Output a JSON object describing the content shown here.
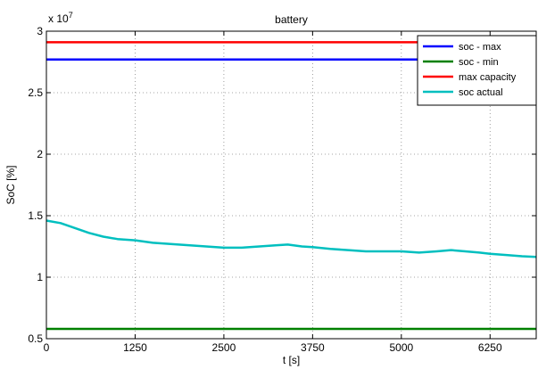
{
  "chart_data": {
    "type": "line",
    "title": "battery",
    "xlabel": "t [s]",
    "ylabel": "SoC [%]",
    "y_exponent_label": "x 10",
    "y_exponent": "7",
    "xlim": [
      0,
      6900
    ],
    "ylim": [
      0.5,
      3.0
    ],
    "grid": true,
    "legend_position": "top-right",
    "x_ticks": [
      0,
      1250,
      2500,
      3750,
      5000,
      6250
    ],
    "x_tick_labels": [
      "0",
      "1250",
      "2500",
      "3750",
      "5000",
      "6250"
    ],
    "y_ticks": [
      0.5,
      1.0,
      1.5,
      2.0,
      2.5,
      3.0
    ],
    "y_tick_labels": [
      "0.5",
      "1",
      "1.5",
      "2",
      "2.5",
      "3"
    ],
    "series": [
      {
        "name": "soc - max",
        "color": "#0000ff",
        "x": [
          0,
          6900
        ],
        "y": [
          2.77,
          2.77
        ]
      },
      {
        "name": "soc - min",
        "color": "#008000",
        "x": [
          0,
          6900
        ],
        "y": [
          0.58,
          0.58
        ]
      },
      {
        "name": "max capacity",
        "color": "#ff0000",
        "x": [
          0,
          6900
        ],
        "y": [
          2.91,
          2.91
        ]
      },
      {
        "name": "soc actual",
        "color": "#00bfbf",
        "x": [
          0,
          200,
          400,
          600,
          800,
          1000,
          1250,
          1500,
          1750,
          2000,
          2250,
          2500,
          2750,
          3000,
          3250,
          3400,
          3600,
          3750,
          4000,
          4250,
          4500,
          4750,
          5000,
          5250,
          5500,
          5700,
          5900,
          6100,
          6250,
          6500,
          6700,
          6900
        ],
        "y": [
          1.46,
          1.44,
          1.4,
          1.36,
          1.33,
          1.31,
          1.3,
          1.28,
          1.27,
          1.26,
          1.25,
          1.24,
          1.24,
          1.25,
          1.26,
          1.265,
          1.25,
          1.245,
          1.23,
          1.22,
          1.21,
          1.21,
          1.21,
          1.2,
          1.21,
          1.22,
          1.21,
          1.2,
          1.19,
          1.18,
          1.17,
          1.165
        ]
      }
    ]
  }
}
